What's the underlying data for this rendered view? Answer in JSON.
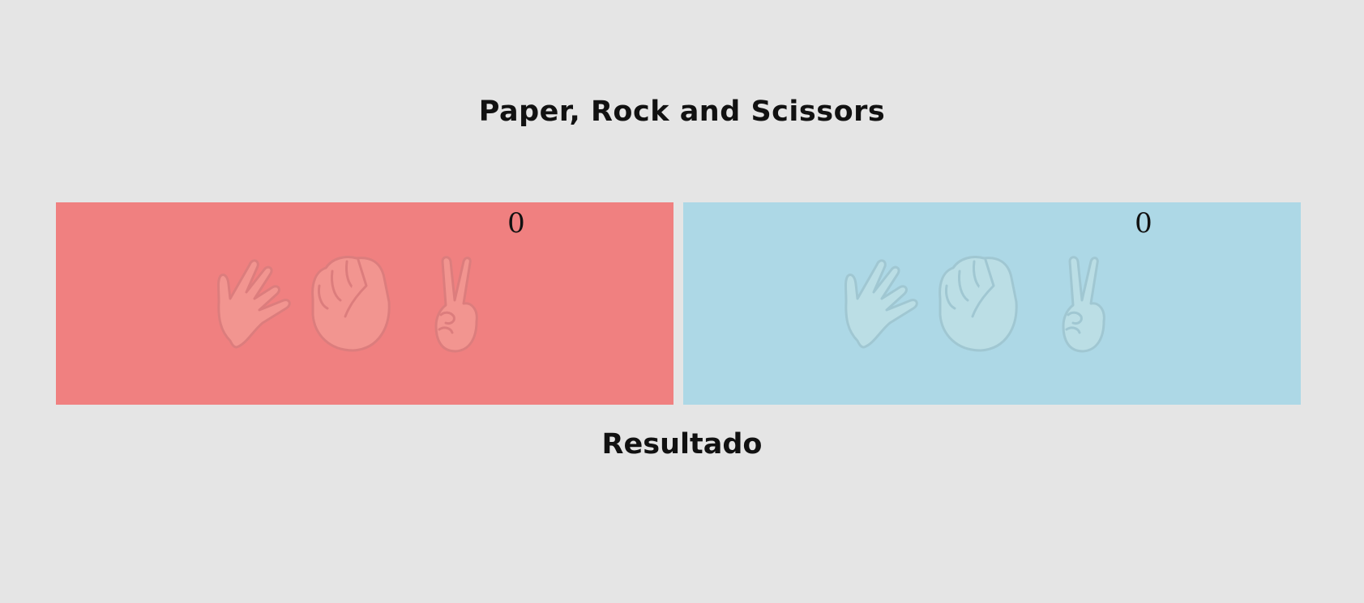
{
  "header": {
    "title": "Paper, Rock and Scissors"
  },
  "players": [
    {
      "score": "0",
      "color": "#f08080",
      "hand_fill": "#f7b4a8",
      "hand_stroke": "#c27a7a"
    },
    {
      "score": "0",
      "color": "#add8e6",
      "hand_fill": "#cfe8e4",
      "hand_stroke": "#8fb0b8"
    }
  ],
  "choices": [
    {
      "name": "paper",
      "icon": "raised-hand-icon"
    },
    {
      "name": "rock",
      "icon": "raised-fist-icon"
    },
    {
      "name": "scissors",
      "icon": "victory-hand-icon"
    }
  ],
  "result": {
    "text": "Resultado"
  }
}
